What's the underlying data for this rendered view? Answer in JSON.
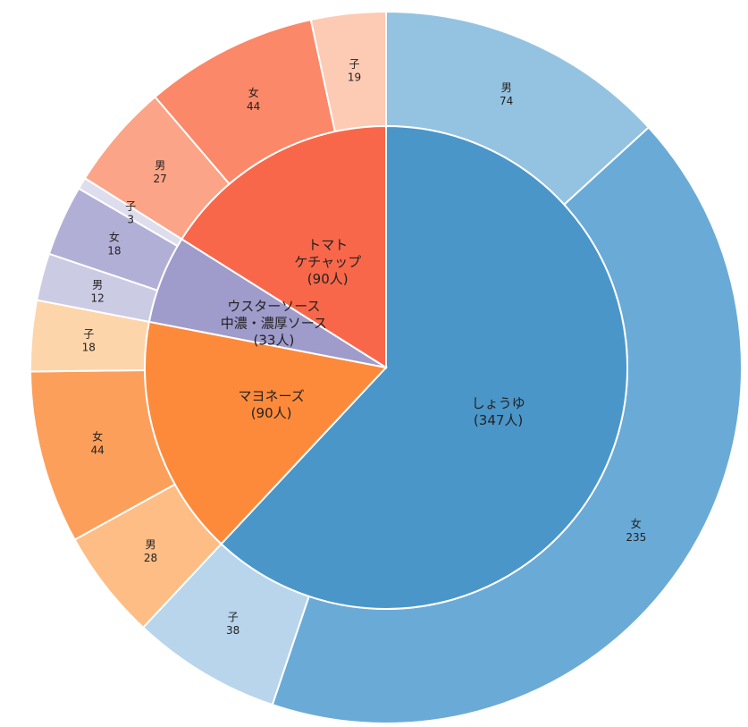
{
  "chart_data": {
    "type": "pie",
    "subtype": "nested-donut",
    "title": "",
    "start": "12 o'clock",
    "direction": "clockwise",
    "inner": [
      {
        "name": "しょうゆ",
        "value": 347,
        "label_lines": [
          "しょうゆ",
          "(347人)"
        ],
        "color": "#4a96c9"
      },
      {
        "name": "マヨネーズ",
        "value": 90,
        "label_lines": [
          "マヨネーズ",
          "(90人)"
        ],
        "color": "#fd8a3b"
      },
      {
        "name": "ウスターソース 中濃・濃厚ソース",
        "value": 33,
        "label_lines": [
          "ウスターソース",
          "中濃・濃厚ソース",
          "(33人)"
        ],
        "color": "#9f9bcb"
      },
      {
        "name": "トマトケチャップ",
        "value": 90,
        "label_lines": [
          "トマト",
          "ケチャップ",
          "(90人)"
        ],
        "color": "#f9674a"
      }
    ],
    "outer": [
      {
        "group": "しょうゆ",
        "name": "男",
        "value": 74,
        "color": "#94c3e1"
      },
      {
        "group": "しょうゆ",
        "name": "女",
        "value": 235,
        "color": "#6aaad7"
      },
      {
        "group": "しょうゆ",
        "name": "子",
        "value": 38,
        "color": "#b8d5ec"
      },
      {
        "group": "マヨネーズ",
        "name": "男",
        "value": 28,
        "color": "#fdbd85"
      },
      {
        "group": "マヨネーズ",
        "name": "女",
        "value": 44,
        "color": "#fc9f5a"
      },
      {
        "group": "マヨネーズ",
        "name": "子",
        "value": 18,
        "color": "#fdd5ab"
      },
      {
        "group": "ウスターソース 中濃・濃厚ソース",
        "name": "男",
        "value": 12,
        "color": "#cccbe4"
      },
      {
        "group": "ウスターソース 中濃・濃厚ソース",
        "name": "女",
        "value": 18,
        "color": "#b2afd7"
      },
      {
        "group": "ウスターソース 中濃・濃厚ソース",
        "name": "子",
        "value": 3,
        "color": "#dedded"
      },
      {
        "group": "トマトケチャップ",
        "name": "男",
        "value": 27,
        "color": "#fca487"
      },
      {
        "group": "トマトケチャップ",
        "name": "女",
        "value": 44,
        "color": "#fb8868"
      },
      {
        "group": "トマトケチャップ",
        "name": "子",
        "value": 19,
        "color": "#fdcab4"
      }
    ]
  }
}
